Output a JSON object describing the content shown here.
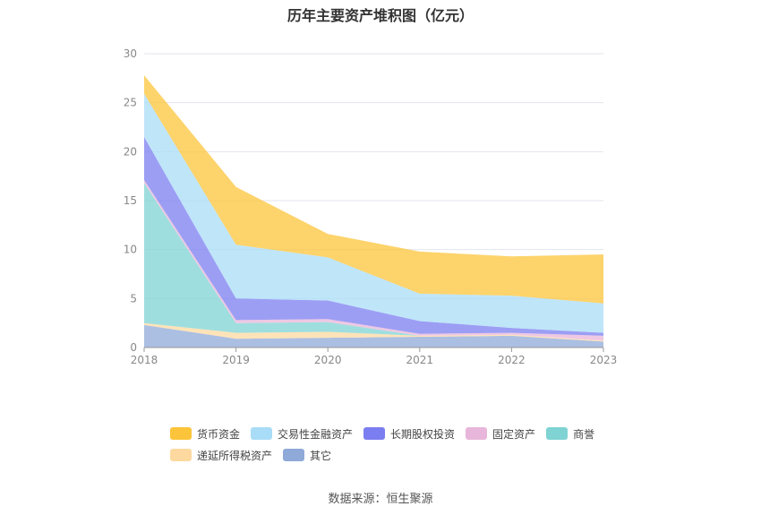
{
  "chart_data": {
    "type": "area",
    "stacked": true,
    "title": "历年主要资产堆积图（亿元）",
    "x": [
      "2018",
      "2019",
      "2020",
      "2021",
      "2022",
      "2023"
    ],
    "ylim": [
      0,
      30
    ],
    "yticks": [
      0,
      5,
      10,
      15,
      20,
      25,
      30
    ],
    "grid": true,
    "legend_position": "bottom",
    "series": [
      {
        "name": "其它",
        "color": "#8fa9d8",
        "values": [
          2.3,
          0.9,
          1.0,
          1.1,
          1.2,
          0.6
        ]
      },
      {
        "name": "递延所得税资产",
        "color": "#fdd9a0",
        "values": [
          0.2,
          0.6,
          0.6,
          0.1,
          0.1,
          0.1
        ]
      },
      {
        "name": "商誉",
        "color": "#7fd3d3",
        "values": [
          14.3,
          1.0,
          1.0,
          0.0,
          0.0,
          0.0
        ]
      },
      {
        "name": "固定资产",
        "color": "#e8b6da",
        "values": [
          0.3,
          0.3,
          0.3,
          0.2,
          0.2,
          0.5
        ]
      },
      {
        "name": "长期股权投资",
        "color": "#7b7ef0",
        "values": [
          4.4,
          2.2,
          1.9,
          1.3,
          0.5,
          0.3
        ]
      },
      {
        "name": "交易性金融资产",
        "color": "#a9dcf7",
        "values": [
          4.4,
          5.5,
          4.4,
          2.8,
          3.3,
          3.0
        ]
      },
      {
        "name": "货币资金",
        "color": "#fcc43a",
        "values": [
          1.9,
          5.9,
          2.4,
          4.3,
          4.0,
          5.0
        ]
      }
    ]
  },
  "legend": {
    "items": [
      {
        "label": "货币资金",
        "color": "#fcc43a"
      },
      {
        "label": "交易性金融资产",
        "color": "#a9dcf7"
      },
      {
        "label": "长期股权投资",
        "color": "#7b7ef0"
      },
      {
        "label": "固定资产",
        "color": "#e8b6da"
      },
      {
        "label": "商誉",
        "color": "#7fd3d3"
      },
      {
        "label": "递延所得税资产",
        "color": "#fdd9a0"
      },
      {
        "label": "其它",
        "color": "#8fa9d8"
      }
    ]
  },
  "source_text": "数据来源：恒生聚源"
}
